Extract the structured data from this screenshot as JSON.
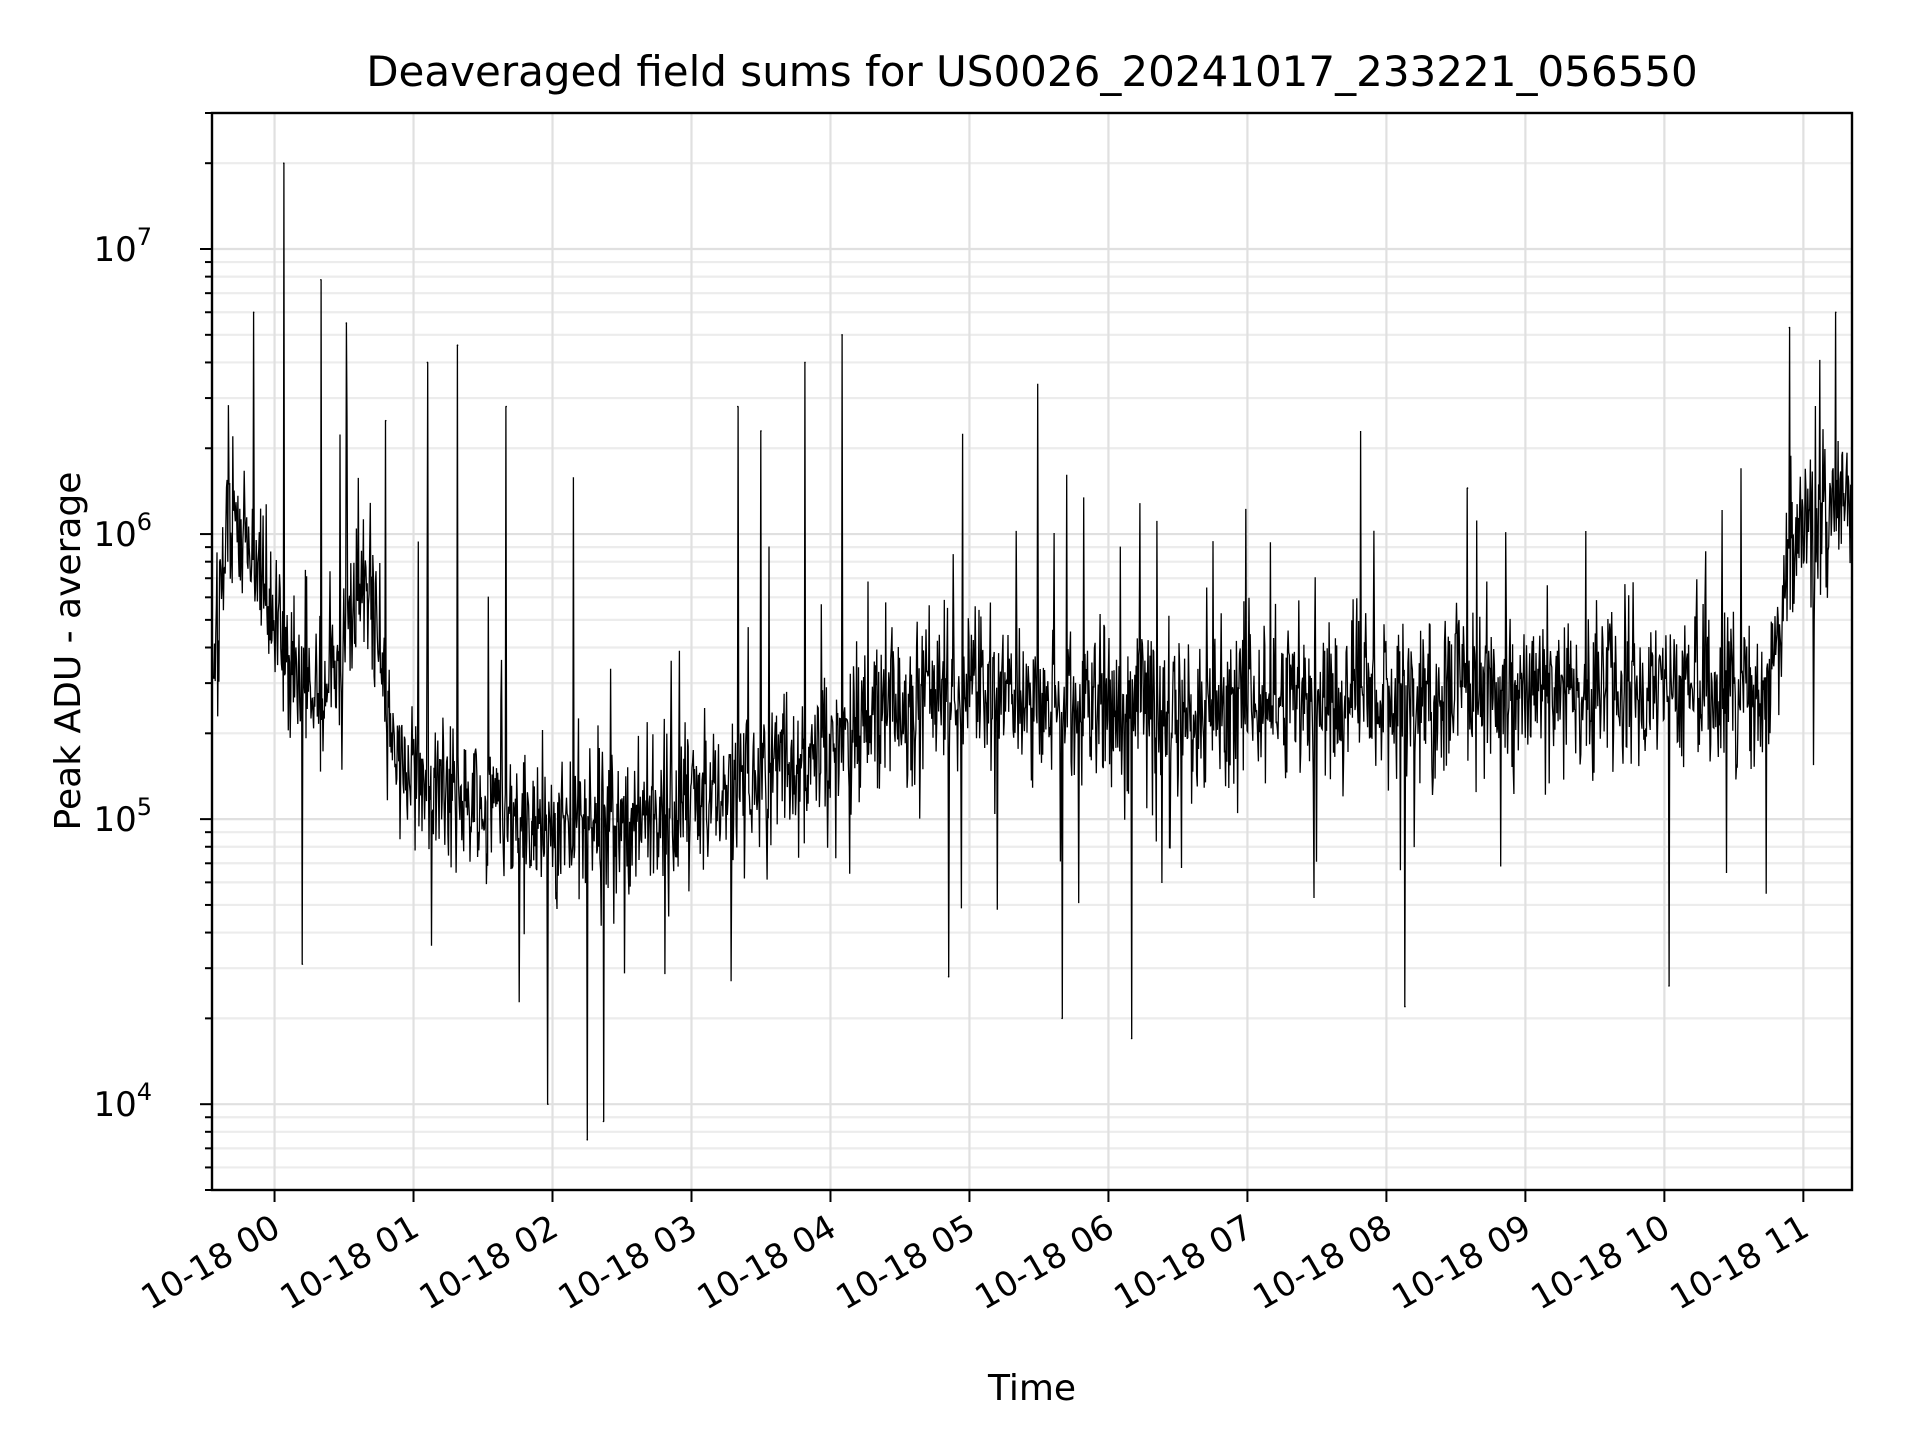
{
  "chart_data": {
    "type": "line",
    "title": "Deaveraged field sums for US0026_20241017_233221_056550",
    "xlabel": "Time",
    "ylabel": "Peak ADU - average",
    "xscale": "time",
    "yscale": "log",
    "xlim": [
      "2024-10-17 23:33",
      "2024-10-18 11:21"
    ],
    "ylim": [
      5000,
      30000000
    ],
    "grid": true,
    "legend": "none",
    "line_color": "#000000",
    "x_ticks": [
      {
        "time": "2024-10-18 00:00",
        "label": "10-18 00"
      },
      {
        "time": "2024-10-18 01:00",
        "label": "10-18 01"
      },
      {
        "time": "2024-10-18 02:00",
        "label": "10-18 02"
      },
      {
        "time": "2024-10-18 03:00",
        "label": "10-18 03"
      },
      {
        "time": "2024-10-18 04:00",
        "label": "10-18 04"
      },
      {
        "time": "2024-10-18 05:00",
        "label": "10-18 05"
      },
      {
        "time": "2024-10-18 06:00",
        "label": "10-18 06"
      },
      {
        "time": "2024-10-18 07:00",
        "label": "10-18 07"
      },
      {
        "time": "2024-10-18 08:00",
        "label": "10-18 08"
      },
      {
        "time": "2024-10-18 09:00",
        "label": "10-18 09"
      },
      {
        "time": "2024-10-18 10:00",
        "label": "10-18 10"
      },
      {
        "time": "2024-10-18 11:00",
        "label": "10-18 11"
      }
    ],
    "y_ticks": [
      {
        "value": 10000,
        "base": "10",
        "exp": "4"
      },
      {
        "value": 100000,
        "base": "10",
        "exp": "5"
      },
      {
        "value": 1000000,
        "base": "10",
        "exp": "6"
      },
      {
        "value": 10000000,
        "base": "10",
        "exp": "7"
      }
    ],
    "series": [
      {
        "x": [
          "2024-10-17 23:33",
          "2024-10-17 23:40",
          "2024-10-17 23:45",
          "2024-10-17 23:50",
          "2024-10-17 23:55",
          "2024-10-18 00:00",
          "2024-10-18 00:10",
          "2024-10-18 00:20",
          "2024-10-18 00:30",
          "2024-10-18 00:40",
          "2024-10-18 00:50",
          "2024-10-18 01:00",
          "2024-10-18 01:15",
          "2024-10-18 01:30",
          "2024-10-18 01:45",
          "2024-10-18 02:00",
          "2024-10-18 02:15",
          "2024-10-18 02:30",
          "2024-10-18 02:45",
          "2024-10-18 03:00",
          "2024-10-18 03:15",
          "2024-10-18 03:30",
          "2024-10-18 03:45",
          "2024-10-18 04:00",
          "2024-10-18 04:15",
          "2024-10-18 04:30",
          "2024-10-18 04:45",
          "2024-10-18 05:00",
          "2024-10-18 05:30",
          "2024-10-18 06:00",
          "2024-10-18 06:30",
          "2024-10-18 07:00",
          "2024-10-18 07:30",
          "2024-10-18 08:00",
          "2024-10-18 08:30",
          "2024-10-18 09:00",
          "2024-10-18 09:30",
          "2024-10-18 10:00",
          "2024-10-18 10:30",
          "2024-10-18 10:45",
          "2024-10-18 10:50",
          "2024-10-18 10:55",
          "2024-10-18 11:00",
          "2024-10-18 11:10",
          "2024-10-18 11:21"
        ],
        "y": [
          300000,
          1200000,
          1100000,
          900000,
          700000,
          500000,
          350000,
          250000,
          400000,
          800000,
          200000,
          150000,
          130000,
          120000,
          100000,
          90000,
          95000,
          100000,
          110000,
          120000,
          130000,
          140000,
          160000,
          180000,
          220000,
          250000,
          270000,
          280000,
          260000,
          250000,
          240000,
          250000,
          260000,
          270000,
          270000,
          280000,
          290000,
          280000,
          270000,
          260000,
          500000,
          900000,
          1100000,
          1200000,
          1400000
        ]
      }
    ],
    "spikes": [
      {
        "time": "2024-10-17 23:51",
        "value": 6000000
      },
      {
        "time": "2024-10-18 00:04",
        "value": 20000000
      },
      {
        "time": "2024-10-18 00:12",
        "value": 31000
      },
      {
        "time": "2024-10-18 00:20",
        "value": 7800000
      },
      {
        "time": "2024-10-18 00:31",
        "value": 5500000
      },
      {
        "time": "2024-10-18 00:48",
        "value": 2500000
      },
      {
        "time": "2024-10-18 01:06",
        "value": 4000000
      },
      {
        "time": "2024-10-18 01:19",
        "value": 4600000
      },
      {
        "time": "2024-10-18 01:40",
        "value": 2800000
      },
      {
        "time": "2024-10-18 01:58",
        "value": 10000
      },
      {
        "time": "2024-10-18 02:15",
        "value": 7500
      },
      {
        "time": "2024-10-18 02:22",
        "value": 8700
      },
      {
        "time": "2024-10-18 03:20",
        "value": 2800000
      },
      {
        "time": "2024-10-18 03:30",
        "value": 2300000
      },
      {
        "time": "2024-10-18 03:49",
        "value": 4000000
      },
      {
        "time": "2024-10-18 04:05",
        "value": 5000000
      },
      {
        "time": "2024-10-18 04:51",
        "value": 28000
      },
      {
        "time": "2024-10-18 05:40",
        "value": 20000
      },
      {
        "time": "2024-10-18 06:10",
        "value": 17000
      },
      {
        "time": "2024-10-18 08:08",
        "value": 22000
      },
      {
        "time": "2024-10-18 08:35",
        "value": 1450000
      },
      {
        "time": "2024-10-18 10:02",
        "value": 26000
      },
      {
        "time": "2024-10-18 10:54",
        "value": 5300000
      },
      {
        "time": "2024-10-18 11:14",
        "value": 6000000
      }
    ]
  }
}
